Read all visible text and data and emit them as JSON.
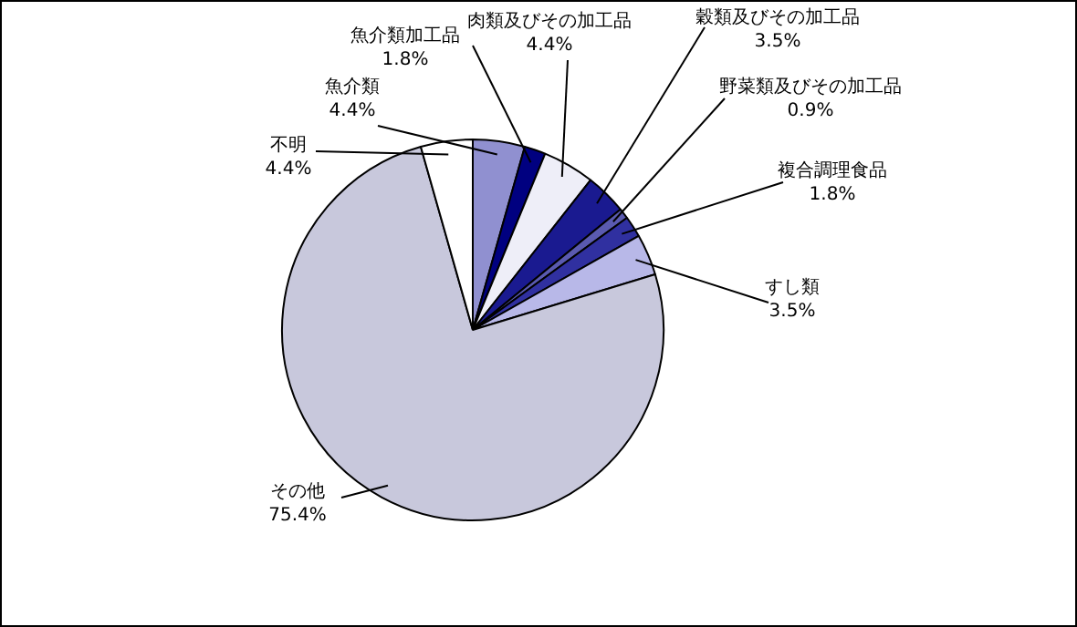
{
  "chart_data": {
    "type": "pie",
    "categories": [
      "魚介類",
      "魚介類加工品",
      "肉類及びその加工品",
      "穀類及びその加工品",
      "野菜類及びその加工品",
      "複合調理食品",
      "すし類",
      "その他",
      "不明"
    ],
    "values": [
      4.4,
      1.8,
      4.4,
      3.5,
      0.9,
      1.8,
      3.5,
      75.4,
      4.4
    ],
    "value_labels": [
      "4.4%",
      "1.8%",
      "4.4%",
      "3.5%",
      "0.9%",
      "1.8%",
      "3.5%",
      "75.4%",
      "4.4%"
    ],
    "colors": [
      "#9090d0",
      "#000080",
      "#eeeef8",
      "#1a1a90",
      "#5a5ab0",
      "#3030a0",
      "#b8b8e8",
      "#c8c8dc",
      "#ffffff"
    ]
  }
}
